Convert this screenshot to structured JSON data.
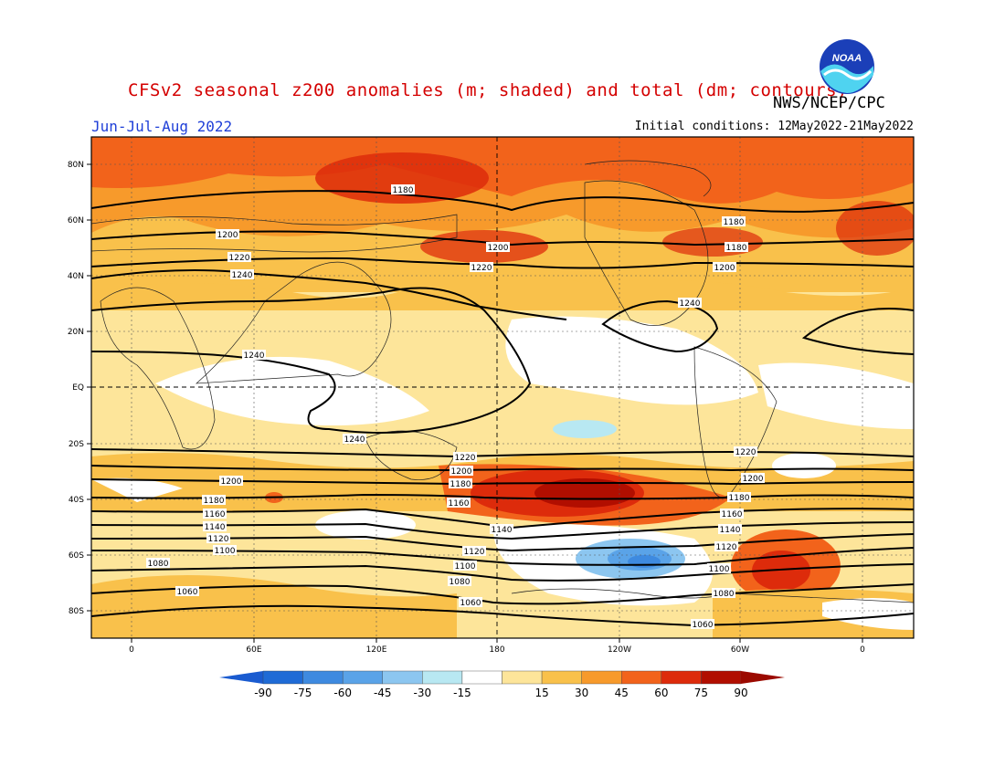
{
  "header": {
    "title": "CFSv2 seasonal z200 anomalies (m; shaded) and total (dm; contours)",
    "agency": "NWS/NCEP/CPC",
    "season": "Jun-Jul-Aug 2022",
    "initial_conditions": "Initial conditions: 12May2022-21May2022",
    "logo_text": "NOAA"
  },
  "map": {
    "lat_ticks": [
      "80N",
      "60N",
      "40N",
      "20N",
      "EQ",
      "20S",
      "40S",
      "60S",
      "80S"
    ],
    "lon_ticks": [
      "0",
      "60E",
      "120E",
      "180",
      "120W",
      "60W",
      "0"
    ],
    "contour_labels": [
      "1180",
      "1200",
      "1220",
      "1240",
      "1180",
      "1200",
      "1220",
      "1240",
      "1180",
      "1200",
      "1220",
      "1240",
      "1240",
      "1240",
      "1220",
      "1200",
      "1180",
      "1160",
      "1140",
      "1120",
      "1100",
      "1080",
      "1060",
      "1200",
      "1180",
      "1160",
      "1140",
      "1120",
      "1100",
      "1080",
      "1060",
      "1220",
      "1200",
      "1180",
      "1160",
      "1140",
      "1120",
      "1100",
      "1080"
    ],
    "colors": {
      "neg90": "#1f6bd6",
      "neg75": "#3e8ae0",
      "neg60": "#5aa3e8",
      "neg45": "#8cc6f0",
      "neg30": "#b8e8f2",
      "neutral": "#ffffff",
      "pos15": "#fde59a",
      "pos30": "#f9c14b",
      "pos45": "#f79a2b",
      "pos60": "#f2631b",
      "pos75": "#dd2b0b",
      "pos90": "#b10e00"
    }
  },
  "colorbar": {
    "labels": [
      "-90",
      "-75",
      "-60",
      "-45",
      "-30",
      "-15",
      "15",
      "30",
      "45",
      "60",
      "75",
      "90"
    ],
    "colors": [
      "#1f6bd6",
      "#3e8ae0",
      "#5aa3e8",
      "#8cc6f0",
      "#b8e8f2",
      "#ffffff",
      "#fde59a",
      "#f9c14b",
      "#f79a2b",
      "#f2631b",
      "#dd2b0b",
      "#b10e00"
    ],
    "below_color": "#1a5bd0",
    "above_color": "#9b0a00"
  }
}
